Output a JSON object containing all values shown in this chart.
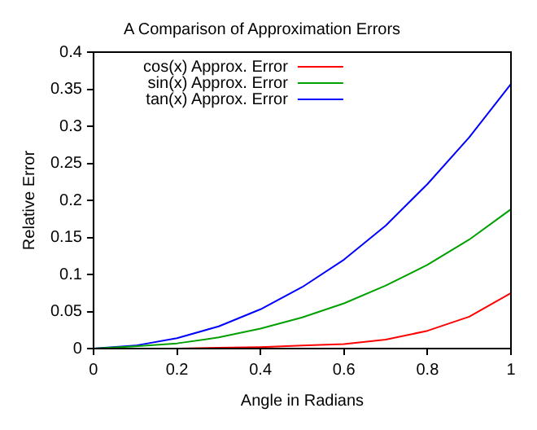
{
  "chart_data": {
    "type": "line",
    "title": "A Comparison of Approximation Errors",
    "xlabel": "Angle in Radians",
    "ylabel": "Relative Error",
    "x": [
      0,
      0.1,
      0.2,
      0.3,
      0.4,
      0.5,
      0.6,
      0.7,
      0.8,
      0.9,
      1
    ],
    "series": [
      {
        "name": "cos(x) Approx. Error",
        "color": "#ff0000",
        "values": [
          null,
          null,
          0,
          0.001,
          0.002,
          0.004,
          0.006,
          0.012,
          0.024,
          0.043,
          0.075
        ]
      },
      {
        "name": "sin(x) Approx. Error",
        "color": "#00a000",
        "values": [
          0,
          0.003,
          0.007,
          0.015,
          0.027,
          0.042,
          0.061,
          0.085,
          0.113,
          0.147,
          0.188
        ]
      },
      {
        "name": "tan(x) Approx. Error",
        "color": "#0000ff",
        "values": [
          0,
          0.004,
          0.014,
          0.03,
          0.053,
          0.083,
          0.12,
          0.166,
          0.222,
          0.285,
          0.357
        ]
      }
    ],
    "xlim": [
      0,
      1
    ],
    "xticks": [
      0,
      0.2,
      0.4,
      0.6,
      0.8,
      1
    ],
    "ylim": [
      0,
      0.4
    ],
    "yticks": [
      0,
      0.05,
      0.1,
      0.15,
      0.2,
      0.25,
      0.3,
      0.35,
      0.4
    ],
    "grid": false,
    "legend": "top left",
    "marker": "none",
    "line_style": "solid"
  }
}
